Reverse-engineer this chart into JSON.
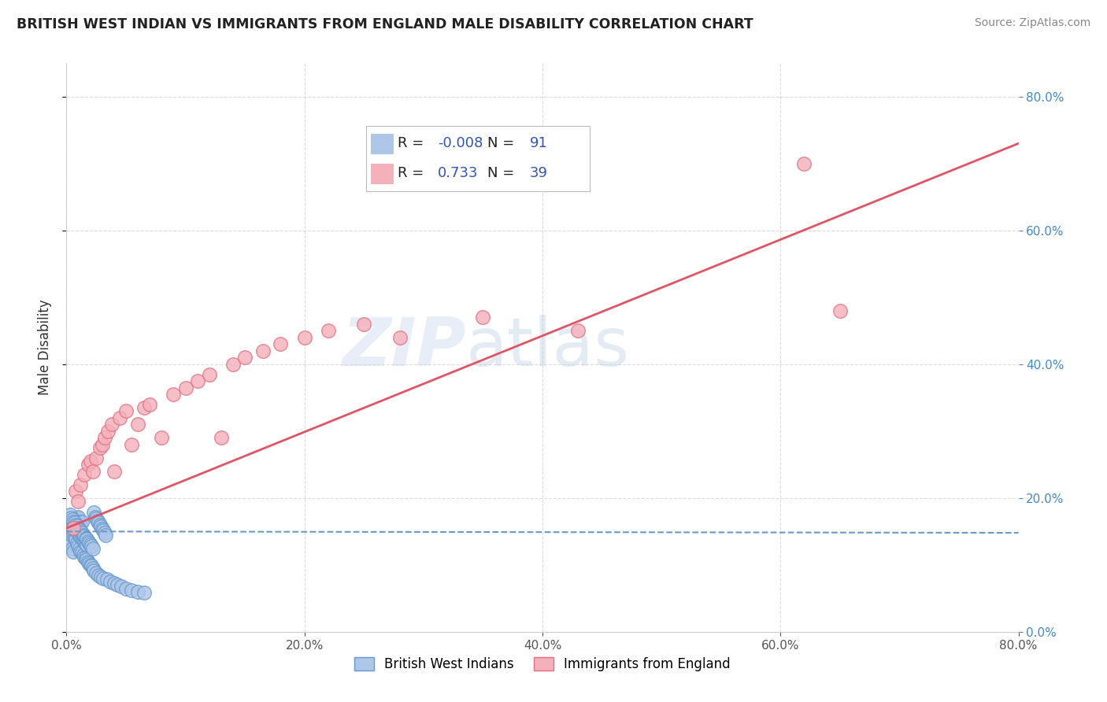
{
  "title": "BRITISH WEST INDIAN VS IMMIGRANTS FROM ENGLAND MALE DISABILITY CORRELATION CHART",
  "source": "Source: ZipAtlas.com",
  "ylabel": "Male Disability",
  "xlabel": "",
  "xmin": 0.0,
  "xmax": 0.8,
  "ymin": 0.0,
  "ymax": 0.85,
  "x_ticks": [
    0.0,
    0.2,
    0.4,
    0.6,
    0.8
  ],
  "y_ticks": [
    0.0,
    0.2,
    0.4,
    0.6,
    0.8
  ],
  "series1_label": "British West Indians",
  "series1_color": "#aec6e8",
  "series1_edge": "#6699cc",
  "series1_R": -0.008,
  "series1_N": 91,
  "series1_line_color": "#6699cc",
  "series2_label": "Immigrants from England",
  "series2_color": "#f4b0bb",
  "series2_edge": "#e07080",
  "series2_R": 0.733,
  "series2_N": 39,
  "series2_line_color": "#e05565",
  "watermark_zip": "ZIP",
  "watermark_atlas": "atlas",
  "legend_color": "#3355bb",
  "background_color": "#ffffff",
  "grid_color": "#cccccc",
  "series1_x": [
    0.002,
    0.003,
    0.003,
    0.004,
    0.004,
    0.005,
    0.005,
    0.005,
    0.006,
    0.006,
    0.006,
    0.007,
    0.007,
    0.007,
    0.008,
    0.008,
    0.008,
    0.009,
    0.009,
    0.009,
    0.01,
    0.01,
    0.01,
    0.01,
    0.011,
    0.011,
    0.011,
    0.012,
    0.012,
    0.012,
    0.013,
    0.013,
    0.013,
    0.014,
    0.014,
    0.015,
    0.015,
    0.016,
    0.016,
    0.017,
    0.017,
    0.018,
    0.019,
    0.02,
    0.021,
    0.022,
    0.023,
    0.025,
    0.027,
    0.029,
    0.031,
    0.034,
    0.037,
    0.04,
    0.043,
    0.046,
    0.05,
    0.055,
    0.06,
    0.065,
    0.003,
    0.004,
    0.005,
    0.006,
    0.007,
    0.008,
    0.009,
    0.01,
    0.011,
    0.012,
    0.013,
    0.014,
    0.015,
    0.016,
    0.017,
    0.018,
    0.019,
    0.02,
    0.021,
    0.022,
    0.023,
    0.024,
    0.025,
    0.026,
    0.027,
    0.028,
    0.029,
    0.03,
    0.031,
    0.032,
    0.033
  ],
  "series1_y": [
    0.135,
    0.14,
    0.145,
    0.13,
    0.15,
    0.125,
    0.155,
    0.145,
    0.12,
    0.148,
    0.16,
    0.143,
    0.152,
    0.162,
    0.138,
    0.155,
    0.168,
    0.133,
    0.15,
    0.17,
    0.128,
    0.148,
    0.16,
    0.172,
    0.125,
    0.145,
    0.165,
    0.12,
    0.142,
    0.162,
    0.118,
    0.14,
    0.165,
    0.115,
    0.138,
    0.112,
    0.135,
    0.11,
    0.132,
    0.108,
    0.13,
    0.105,
    0.102,
    0.1,
    0.098,
    0.095,
    0.092,
    0.088,
    0.085,
    0.082,
    0.08,
    0.078,
    0.075,
    0.073,
    0.07,
    0.068,
    0.065,
    0.062,
    0.06,
    0.058,
    0.175,
    0.17,
    0.168,
    0.165,
    0.163,
    0.16,
    0.158,
    0.155,
    0.153,
    0.15,
    0.148,
    0.145,
    0.143,
    0.14,
    0.138,
    0.135,
    0.133,
    0.13,
    0.128,
    0.125,
    0.178,
    0.172,
    0.169,
    0.166,
    0.163,
    0.16,
    0.157,
    0.154,
    0.151,
    0.148,
    0.145
  ],
  "series2_x": [
    0.006,
    0.008,
    0.01,
    0.012,
    0.015,
    0.018,
    0.02,
    0.022,
    0.025,
    0.028,
    0.03,
    0.032,
    0.035,
    0.038,
    0.04,
    0.045,
    0.05,
    0.055,
    0.06,
    0.065,
    0.07,
    0.08,
    0.09,
    0.1,
    0.11,
    0.12,
    0.13,
    0.14,
    0.15,
    0.165,
    0.18,
    0.2,
    0.22,
    0.25,
    0.28,
    0.35,
    0.43,
    0.62,
    0.65
  ],
  "series2_y": [
    0.155,
    0.21,
    0.195,
    0.22,
    0.235,
    0.25,
    0.255,
    0.24,
    0.26,
    0.275,
    0.28,
    0.29,
    0.3,
    0.31,
    0.24,
    0.32,
    0.33,
    0.28,
    0.31,
    0.335,
    0.34,
    0.29,
    0.355,
    0.365,
    0.375,
    0.385,
    0.29,
    0.4,
    0.41,
    0.42,
    0.43,
    0.44,
    0.45,
    0.46,
    0.44,
    0.47,
    0.45,
    0.7,
    0.48
  ],
  "trendline1_x": [
    0.0,
    0.8
  ],
  "trendline1_y": [
    0.15,
    0.148
  ],
  "trendline2_x": [
    0.0,
    0.8
  ],
  "trendline2_y": [
    0.155,
    0.73
  ]
}
